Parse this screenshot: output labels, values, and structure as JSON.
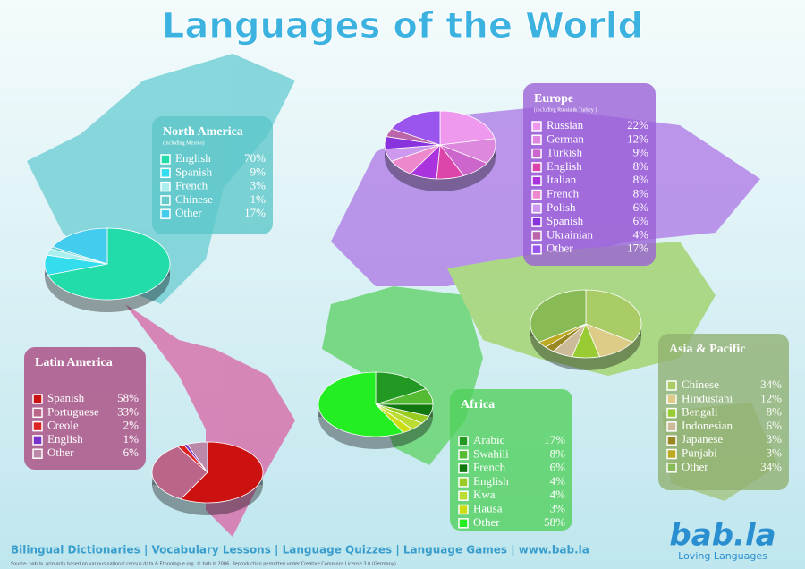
{
  "title": "Languages of the World",
  "chart_data": [
    {
      "type": "pie",
      "title": "North America",
      "subtitle": "(including Mexico)",
      "categories": [
        "English",
        "Spanish",
        "French",
        "Chinese",
        "Other"
      ],
      "values": [
        70,
        9,
        3,
        1,
        17
      ],
      "value_labels": [
        "70%",
        "9%",
        "3%",
        "1%",
        "17%"
      ],
      "colors": [
        "#22ddaa",
        "#33ddee",
        "#aaeeee",
        "#66cccc",
        "#44ccee"
      ]
    },
    {
      "type": "pie",
      "title": "Europe",
      "subtitle": "(including Russia & Turkey )",
      "categories": [
        "Russian",
        "German",
        "Turkish",
        "English",
        "Italian",
        "French",
        "Polish",
        "Spanish",
        "Ukrainian",
        "Other"
      ],
      "values": [
        22,
        12,
        9,
        8,
        8,
        8,
        6,
        6,
        4,
        17
      ],
      "value_labels": [
        "22%",
        "12%",
        "9%",
        "8%",
        "8%",
        "8%",
        "6%",
        "6%",
        "4%",
        "17%"
      ],
      "colors": [
        "#ee99ee",
        "#dd88dd",
        "#cc66cc",
        "#dd44aa",
        "#aa33dd",
        "#ee88cc",
        "#cc99ee",
        "#8833dd",
        "#bb66aa",
        "#9955ee"
      ]
    },
    {
      "type": "pie",
      "title": "Latin America",
      "categories": [
        "Spanish",
        "Portuguese",
        "Creole",
        "English",
        "Other"
      ],
      "values": [
        58,
        33,
        2,
        1,
        6
      ],
      "value_labels": [
        "58%",
        "33%",
        "2%",
        "1%",
        "6%"
      ],
      "colors": [
        "#cc1111",
        "#bb6688",
        "#dd2222",
        "#7733cc",
        "#bb88aa"
      ]
    },
    {
      "type": "pie",
      "title": "Africa",
      "categories": [
        "Arabic",
        "Swahili",
        "French",
        "English",
        "Kwa",
        "Hausa",
        "Other"
      ],
      "values": [
        17,
        8,
        6,
        4,
        4,
        3,
        58
      ],
      "value_labels": [
        "17%",
        "8%",
        "6%",
        "4%",
        "4%",
        "3%",
        "58%"
      ],
      "colors": [
        "#229922",
        "#55bb33",
        "#117711",
        "#99cc22",
        "#bbdd33",
        "#ccdd11",
        "#22ee22"
      ]
    },
    {
      "type": "pie",
      "title": "Asia & Pacific",
      "categories": [
        "Chinese",
        "Hindustani",
        "Bengali",
        "Indonesian",
        "Japanese",
        "Punjabi",
        "Other"
      ],
      "values": [
        34,
        12,
        8,
        6,
        3,
        3,
        34
      ],
      "value_labels": [
        "34%",
        "12%",
        "8%",
        "6%",
        "3%",
        "3%",
        "34%"
      ],
      "colors": [
        "#aacc66",
        "#ddcc88",
        "#99cc33",
        "#ccbb99",
        "#998822",
        "#bbaa22",
        "#88bb55"
      ]
    }
  ],
  "footer": "Bilingual Dictionaries | Vocabulary Lessons | Language Quizzes | Language Games | www.bab.la",
  "source": "Source: bab.la, primarily based on various national census data & Ethnologue.org. © bab.la 2006. Reproduction permitted under Creative Commons License 3.0 (Germany).",
  "brand": "bab.la",
  "tagline": "Loving Languages"
}
